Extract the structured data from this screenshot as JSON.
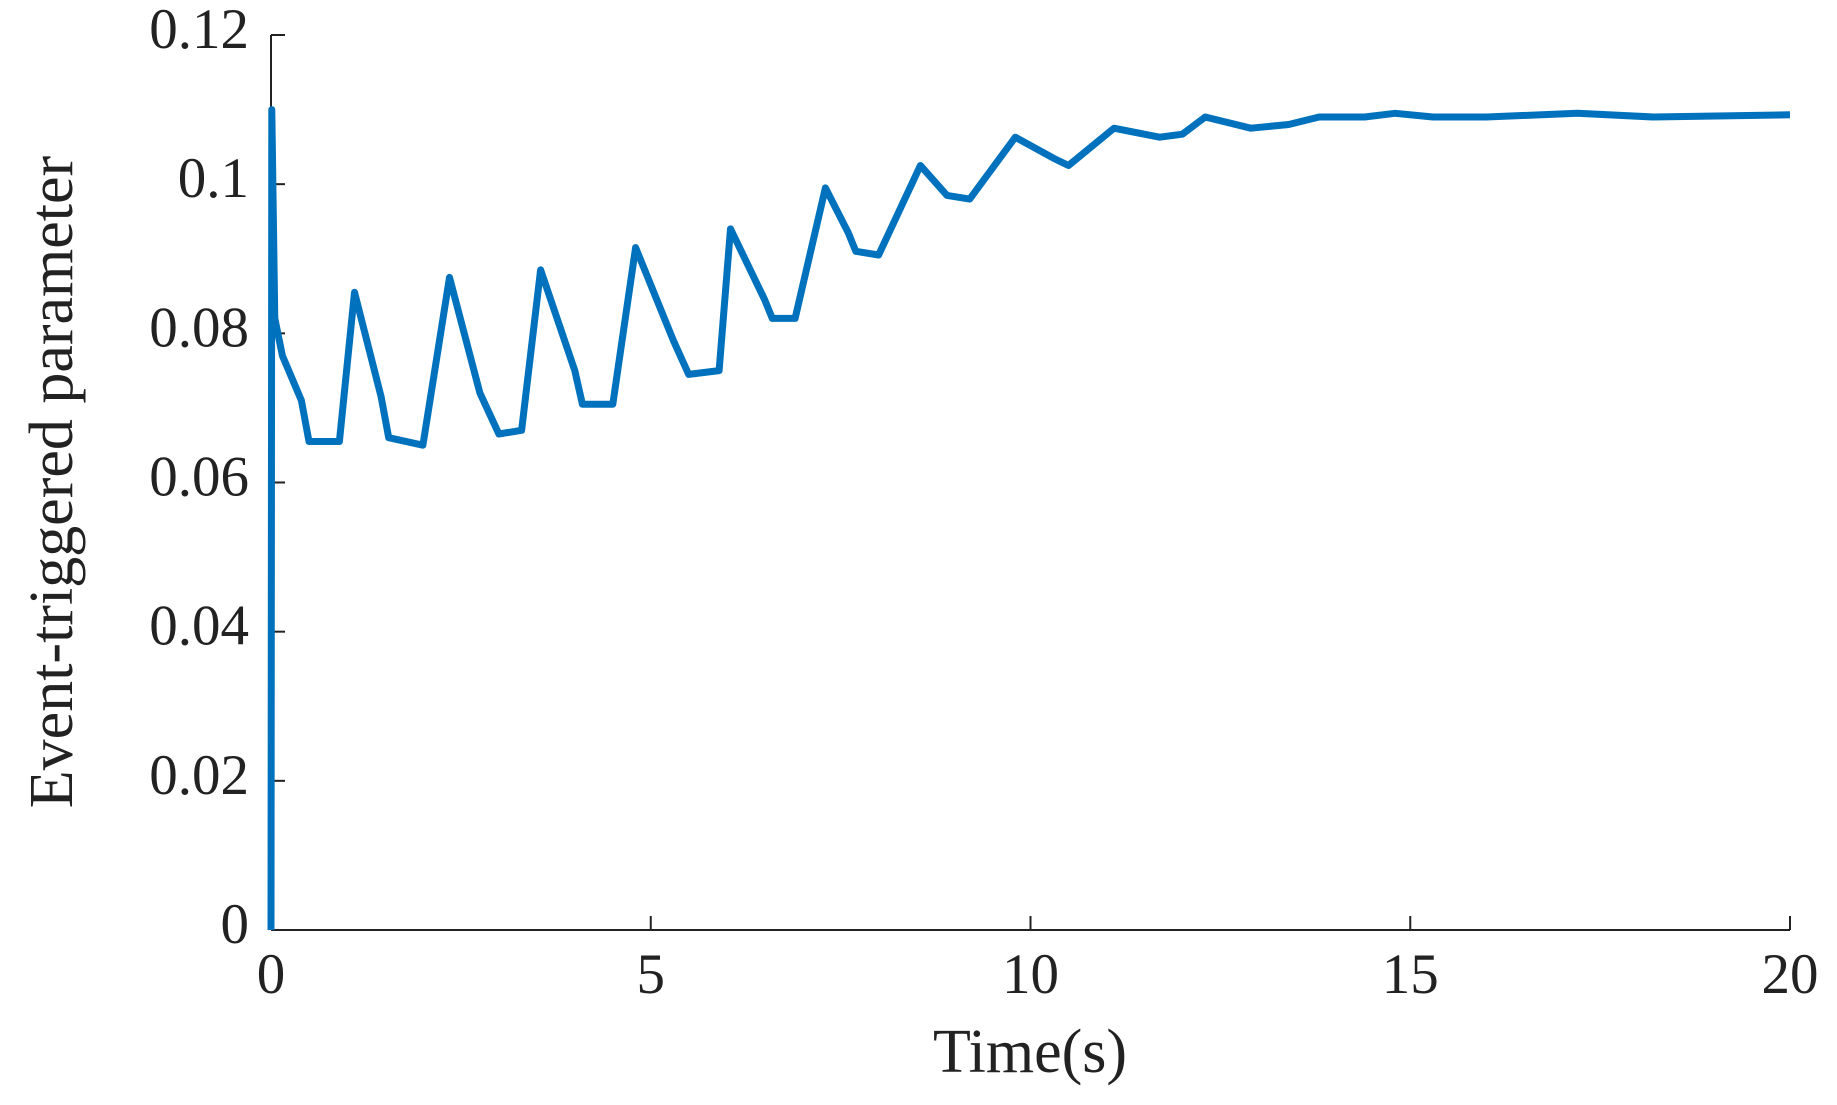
{
  "chart_data": {
    "type": "line",
    "x_label": "Time(s)",
    "y_label": "Event-triggered parameter",
    "series": [
      {
        "color": "#0072bd",
        "x": [
          0,
          0.01,
          0.05,
          0.15,
          0.4,
          0.5,
          0.9,
          1.1,
          1.45,
          1.55,
          2.0,
          2.35,
          2.75,
          3.0,
          3.3,
          3.55,
          4.0,
          4.1,
          4.5,
          4.8,
          5.3,
          5.5,
          5.9,
          6.05,
          6.5,
          6.6,
          6.9,
          7.3,
          7.6,
          7.7,
          8.0,
          8.55,
          8.9,
          9.2,
          9.8,
          10.3,
          10.5,
          11.1,
          11.7,
          12.0,
          12.3,
          12.9,
          13.4,
          13.8,
          14.4,
          14.8,
          15.3,
          16.0,
          17.2,
          18.2,
          20
        ],
        "values": [
          0,
          0.11,
          0.082,
          0.077,
          0.071,
          0.0655,
          0.0655,
          0.0855,
          0.0715,
          0.066,
          0.065,
          0.0875,
          0.072,
          0.0665,
          0.067,
          0.0885,
          0.075,
          0.0705,
          0.0705,
          0.0915,
          0.079,
          0.0745,
          0.075,
          0.094,
          0.0845,
          0.082,
          0.082,
          0.0995,
          0.0935,
          0.091,
          0.0905,
          0.1025,
          0.0985,
          0.098,
          0.1063,
          0.1035,
          0.1025,
          0.1075,
          0.1063,
          0.1067,
          0.109,
          0.1075,
          0.108,
          0.109,
          0.109,
          0.1095,
          0.109,
          0.109,
          0.1095,
          0.109,
          0.1093
        ]
      }
    ],
    "xlim": [
      0,
      20
    ],
    "xticks": [
      0,
      5,
      10,
      15,
      20
    ],
    "ylim": [
      0,
      0.12
    ],
    "yticks": [
      0,
      0.02,
      0.04,
      0.06,
      0.08,
      0.1,
      0.12
    ]
  }
}
